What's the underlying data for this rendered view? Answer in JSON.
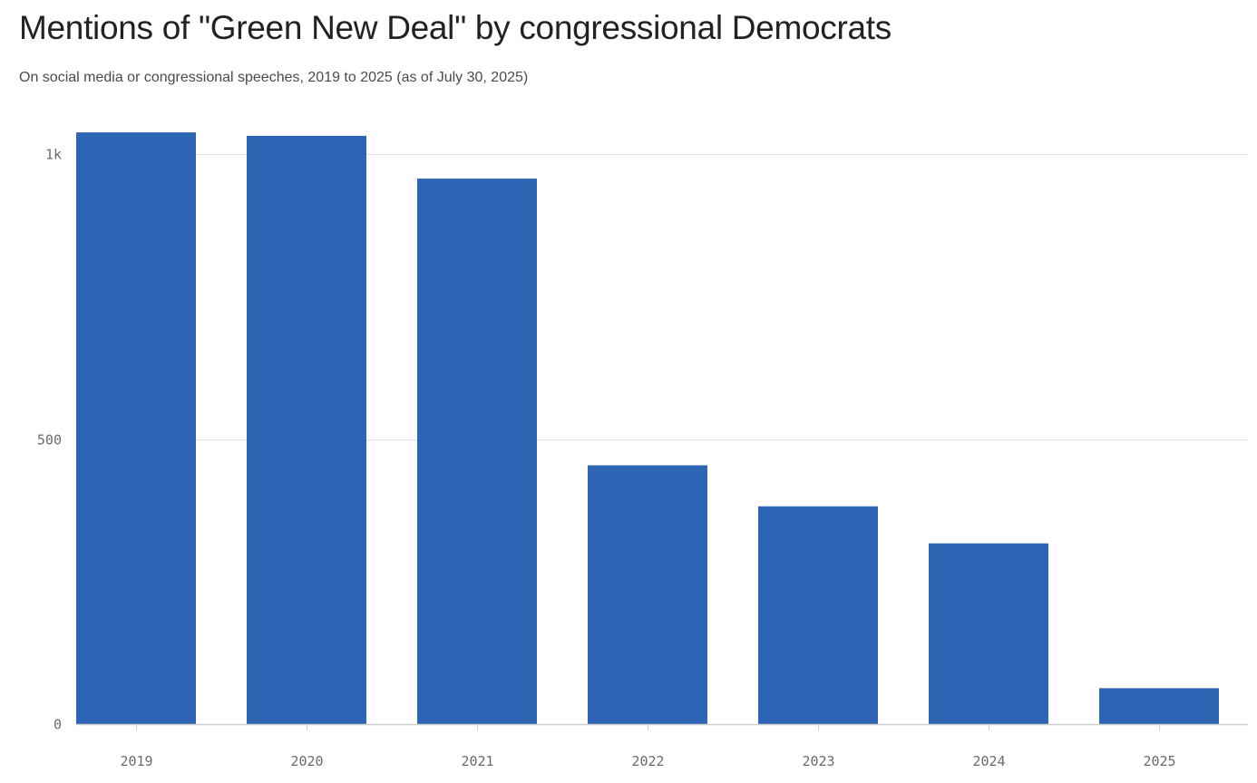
{
  "title": "Mentions of \"Green New Deal\" by congressional Democrats",
  "subtitle": "On social media or congressional speeches, 2019 to 2025 (as of July 30, 2025)",
  "colors": {
    "bar": "#2e66b5",
    "grid": "#e4e4e4",
    "axis": "#cfcfcf",
    "tick_text": "#6b6b6b"
  },
  "chart_data": {
    "type": "bar",
    "title": "Mentions of \"Green New Deal\" by congressional Democrats",
    "subtitle": "On social media or congressional speeches, 2019 to 2025 (as of July 30, 2025)",
    "categories": [
      "2019",
      "2020",
      "2021",
      "2022",
      "2023",
      "2024",
      "2025"
    ],
    "values": [
      1038,
      1032,
      957,
      454,
      382,
      317,
      63
    ],
    "ylim": [
      0,
      1000
    ],
    "yticks": [
      {
        "value": 0,
        "label": "0"
      },
      {
        "value": 500,
        "label": "500"
      },
      {
        "value": 1000,
        "label": "1k"
      }
    ],
    "xlabel": "",
    "ylabel": "",
    "grid": true,
    "legend": "none"
  }
}
